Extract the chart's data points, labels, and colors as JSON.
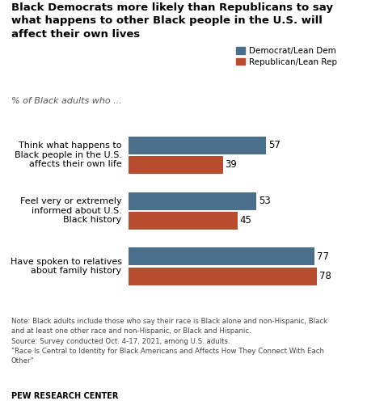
{
  "title": "Black Democrats more likely than Republicans to say\nwhat happens to other Black people in the U.S. will\naffect their own lives",
  "subtitle": "% of Black adults who ...",
  "categories": [
    "Think what happens to\nBlack people in the U.S.\naffects their own life",
    "Feel very or extremely\ninformed about U.S.\nBlack history",
    "Have spoken to relatives\nabout family history"
  ],
  "dem_values": [
    57,
    53,
    77
  ],
  "rep_values": [
    39,
    45,
    78
  ],
  "dem_color": "#4a6f8a",
  "rep_color": "#b94b2e",
  "legend_labels": [
    "Democrat/Lean Dem",
    "Republican/Lean Rep"
  ],
  "note1": "Note: Black adults include those who say their race is Black alone and non-Hispanic, Black",
  "note2": "and at least one other race and non-Hispanic, or Black and Hispanic.",
  "note3": "Source: Survey conducted Oct. 4-17, 2021, among U.S. adults.",
  "note4": "\"Race Is Central to Identity for Black Americans and Affects How They Connect With Each",
  "note5": "Other\"",
  "footer": "PEW RESEARCH CENTER",
  "xlim": [
    0,
    88
  ],
  "bar_height": 0.32,
  "figsize": [
    4.54,
    5.01
  ],
  "dpi": 100
}
